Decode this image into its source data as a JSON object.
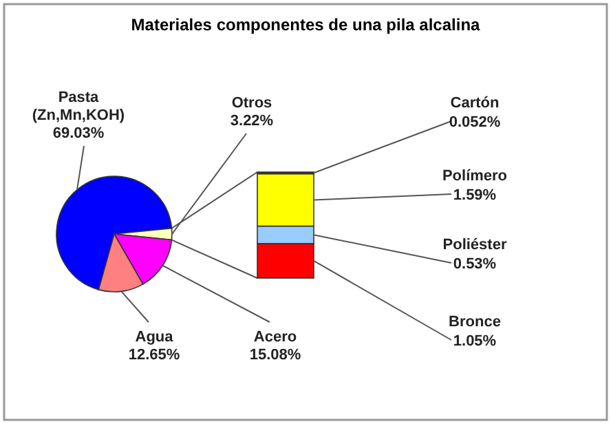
{
  "chart_data": [
    {
      "type": "pie",
      "title": "Materiales componentes de una pila alcalina",
      "categories": [
        "Pasta (Zn,Mn,KOH)",
        "Otros",
        "Acero",
        "Agua"
      ],
      "values": [
        69.03,
        3.22,
        15.08,
        12.65
      ],
      "colors": [
        "#0000ff",
        "#ffffc0",
        "#ff00ff",
        "#ff8080"
      ],
      "value_labels": [
        "69.03%",
        "3.22%",
        "15.08%",
        "12.65%"
      ],
      "legend": false
    },
    {
      "type": "bar",
      "stacked": true,
      "categories": [
        null
      ],
      "legend": false,
      "series": [
        {
          "name": "Bronce",
          "color": "#ff0000",
          "values": [
            1.05
          ],
          "value_labels": [
            "1.05%"
          ]
        },
        {
          "name": "Poliéster",
          "color": "#99ccff",
          "values": [
            0.53
          ],
          "value_labels": [
            "0.53%"
          ]
        },
        {
          "name": "Polímero",
          "color": "#ffff00",
          "values": [
            1.59
          ],
          "value_labels": [
            "1.59%"
          ]
        },
        {
          "name": "Cartón",
          "color": "#333333",
          "values": [
            0.052
          ],
          "value_labels": [
            "0.052%"
          ]
        }
      ]
    }
  ]
}
